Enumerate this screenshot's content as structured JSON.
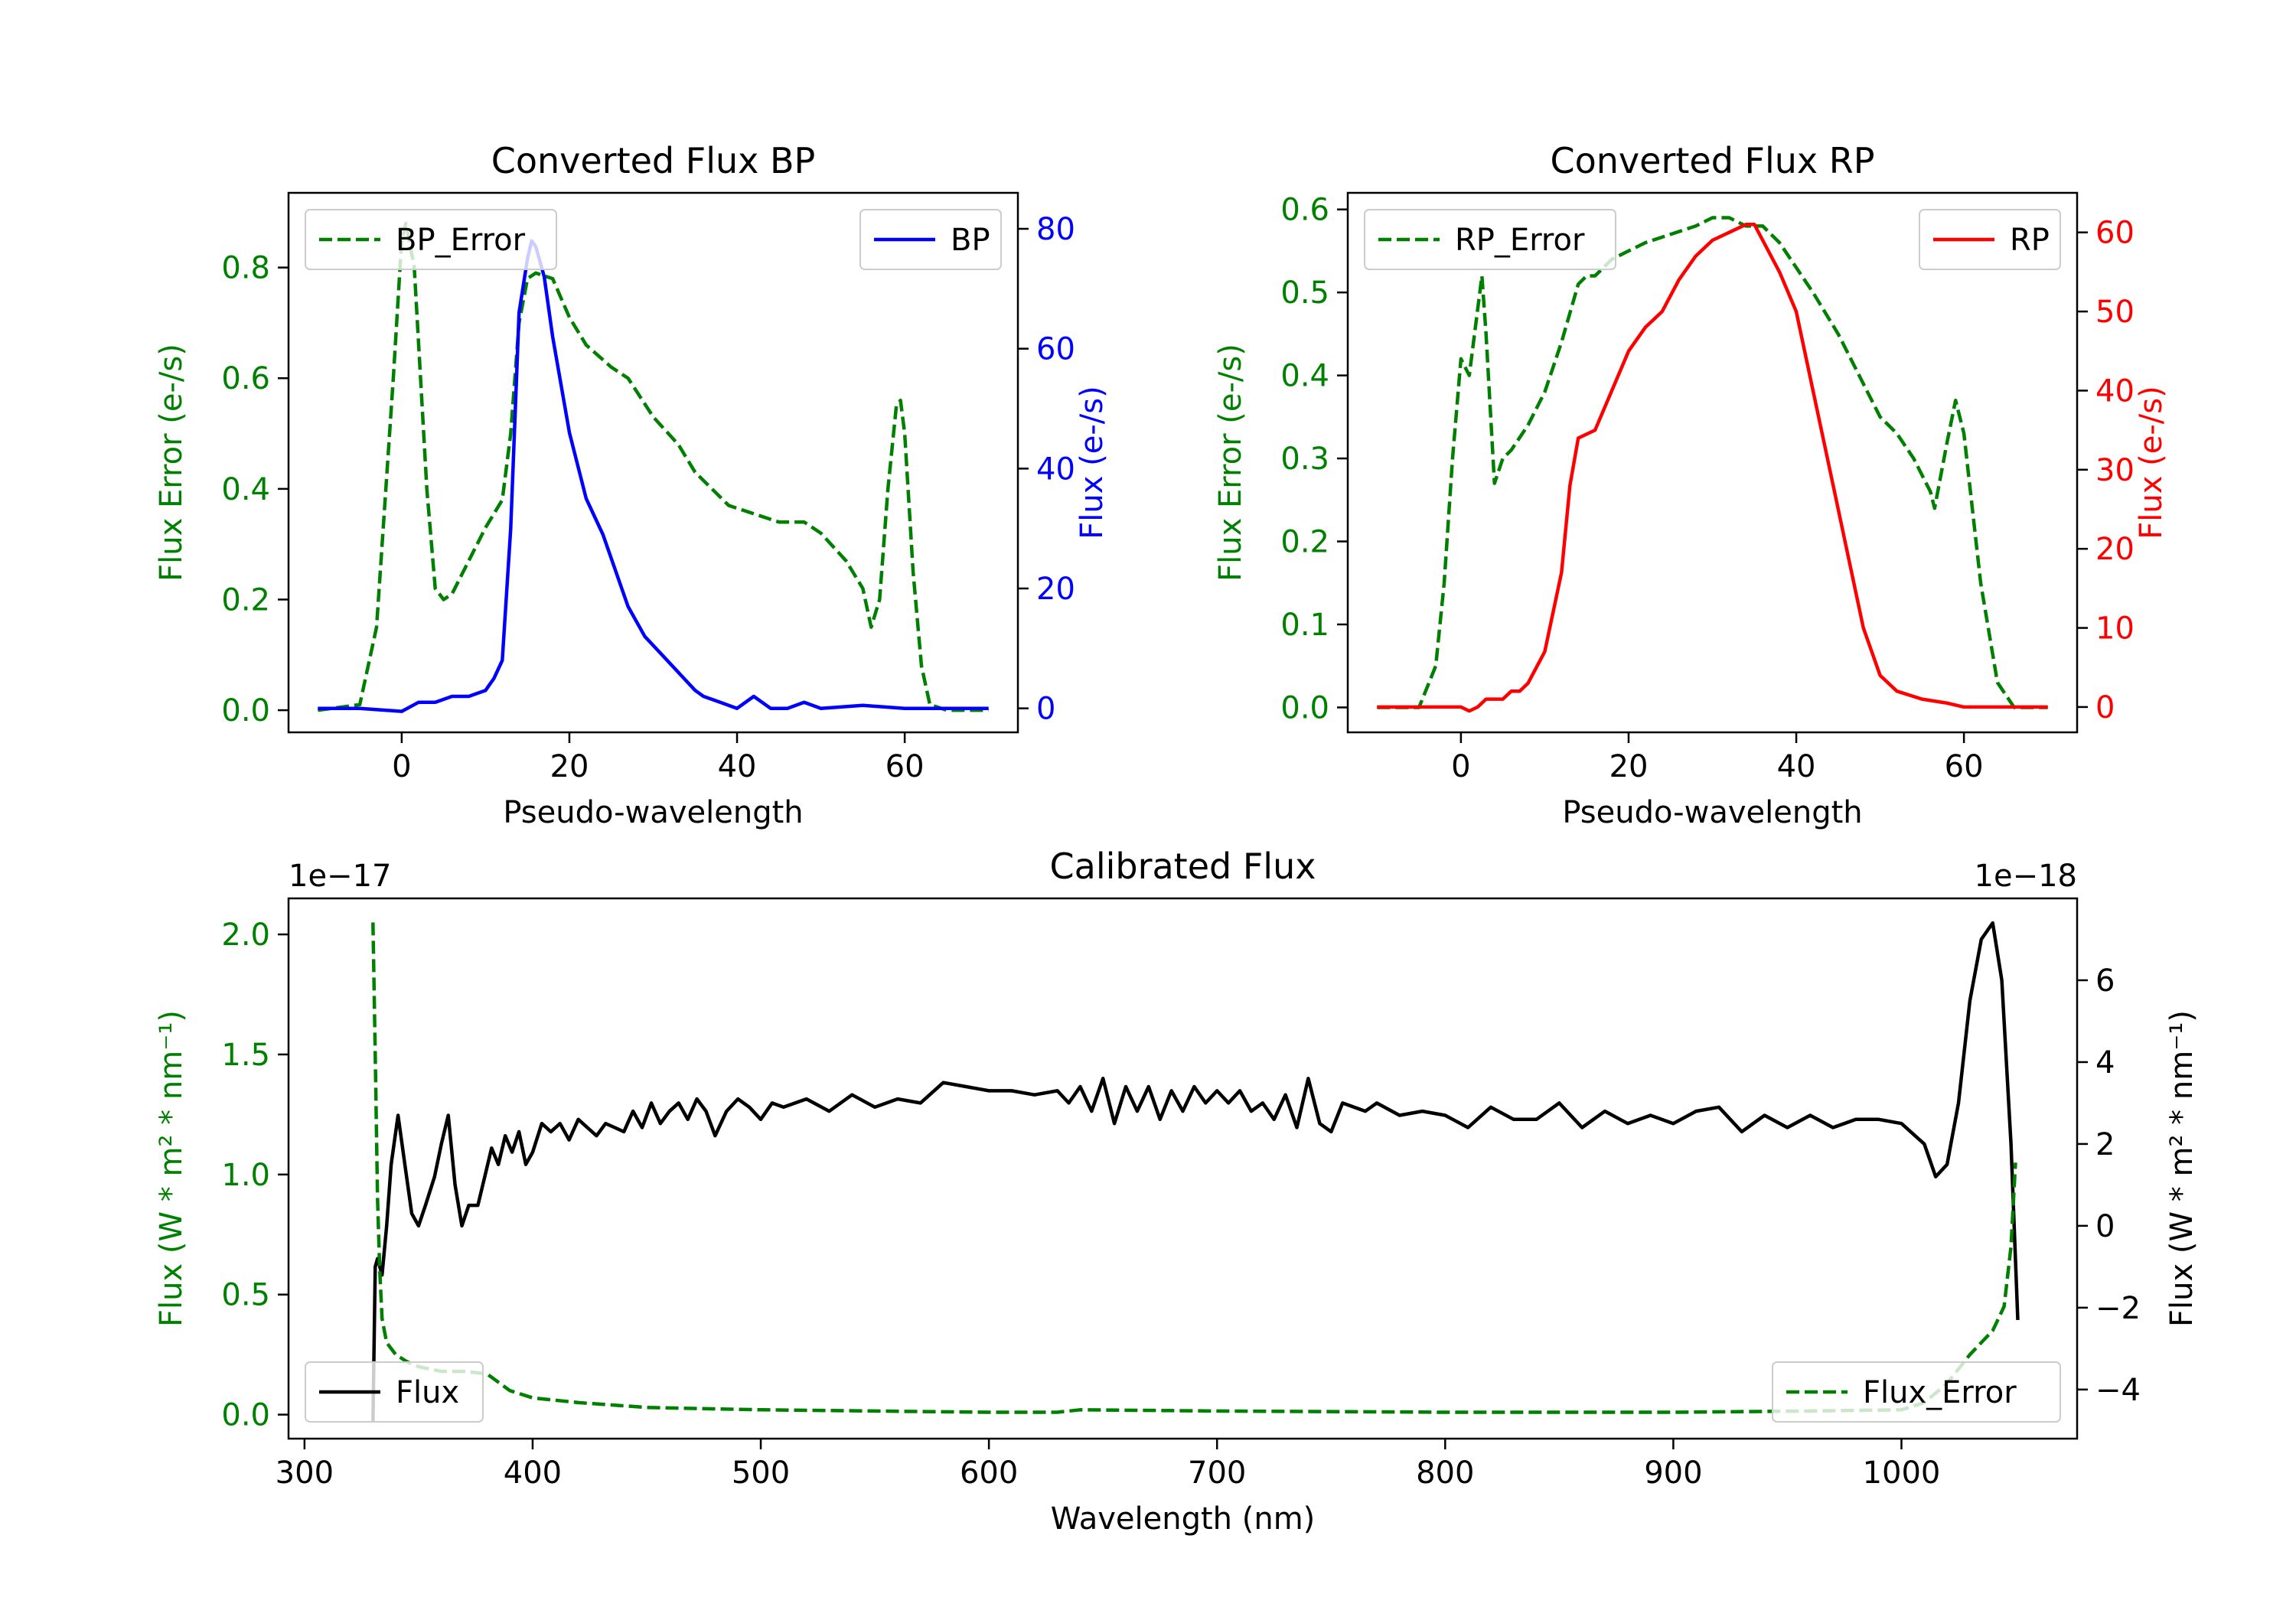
{
  "colors": {
    "green": "#008000",
    "blue": "#0000ff",
    "red": "#ff0000",
    "black": "#000000"
  },
  "chart_data": [
    {
      "type": "line",
      "title": "Converted Flux BP",
      "xlabel": "Pseudo-wavelength",
      "xlim": [
        -13.5,
        73.5
      ],
      "xticks": [
        0,
        20,
        40,
        60
      ],
      "xtick_labels": [
        "0",
        "20",
        "40",
        "60"
      ],
      "left_axis": {
        "label": "Flux Error (e-/s)",
        "color": "#008000",
        "ylim": [
          -0.04,
          0.935
        ],
        "ticks": [
          0.0,
          0.2,
          0.4,
          0.6,
          0.8
        ],
        "tick_labels": [
          "0.0",
          "0.2",
          "0.4",
          "0.6",
          "0.8"
        ]
      },
      "right_axis": {
        "label": "Flux (e-/s)",
        "color": "#0000ff",
        "ylim": [
          -4,
          86
        ],
        "ticks": [
          0,
          20,
          40,
          60,
          80
        ],
        "tick_labels": [
          "0",
          "20",
          "40",
          "60",
          "80"
        ]
      },
      "series": [
        {
          "name": "BP_Error",
          "axis": "left",
          "style": "dashed",
          "color": "#008000",
          "x": [
            -10,
            -5,
            -3,
            -1,
            0,
            0.5,
            1.5,
            3,
            4,
            5,
            6,
            8,
            10,
            12,
            13,
            14,
            15,
            16,
            18,
            20,
            22,
            25,
            27,
            30,
            33,
            35,
            37,
            39,
            41,
            43,
            45,
            48,
            50,
            53,
            55,
            56,
            57,
            58,
            59,
            59.5,
            60,
            61,
            62,
            63,
            65,
            70
          ],
          "y": [
            0.0,
            0.01,
            0.15,
            0.6,
            0.85,
            0.88,
            0.8,
            0.4,
            0.22,
            0.2,
            0.21,
            0.27,
            0.33,
            0.38,
            0.5,
            0.7,
            0.78,
            0.79,
            0.78,
            0.71,
            0.66,
            0.62,
            0.6,
            0.53,
            0.48,
            0.43,
            0.4,
            0.37,
            0.36,
            0.35,
            0.34,
            0.34,
            0.32,
            0.27,
            0.22,
            0.15,
            0.2,
            0.4,
            0.55,
            0.56,
            0.5,
            0.25,
            0.08,
            0.01,
            0.0,
            0.0
          ]
        },
        {
          "name": "BP",
          "axis": "right",
          "style": "solid",
          "color": "#0000ff",
          "x": [
            -10,
            -5,
            0,
            2,
            4,
            6,
            8,
            10,
            11,
            12,
            13,
            14,
            15,
            15.5,
            16,
            17,
            18,
            20,
            22,
            24,
            25,
            27,
            29,
            31,
            33,
            35,
            36,
            37,
            38,
            40,
            42,
            44,
            46,
            48,
            50,
            55,
            60,
            65,
            70
          ],
          "y": [
            0,
            0,
            -0.5,
            1,
            1,
            2,
            2,
            3,
            5,
            8,
            30,
            66,
            75,
            78,
            77,
            72,
            62,
            46,
            35,
            29,
            25,
            17,
            12,
            9,
            6,
            3,
            2,
            1.5,
            1,
            0,
            2,
            0,
            0,
            1,
            0,
            0.5,
            0,
            0,
            0
          ]
        }
      ],
      "legends": [
        {
          "label": "BP_Error",
          "position": "upper left"
        },
        {
          "label": "BP",
          "position": "upper right"
        }
      ]
    },
    {
      "type": "line",
      "title": "Converted Flux RP",
      "xlabel": "Pseudo-wavelength",
      "xlim": [
        -13.5,
        73.5
      ],
      "xticks": [
        0,
        20,
        40,
        60
      ],
      "xtick_labels": [
        "0",
        "20",
        "40",
        "60"
      ],
      "left_axis": {
        "label": "Flux Error (e-/s)",
        "color": "#008000",
        "ylim": [
          -0.03,
          0.62
        ],
        "ticks": [
          0.0,
          0.1,
          0.2,
          0.3,
          0.4,
          0.5,
          0.6
        ],
        "tick_labels": [
          "0.0",
          "0.1",
          "0.2",
          "0.3",
          "0.4",
          "0.5",
          "0.6"
        ]
      },
      "right_axis": {
        "label": "Flux (e-/s)",
        "color": "#ff0000",
        "ylim": [
          -3.2,
          65
        ],
        "ticks": [
          0,
          10,
          20,
          30,
          40,
          50,
          60
        ],
        "tick_labels": [
          "0",
          "10",
          "20",
          "30",
          "40",
          "50",
          "60"
        ]
      },
      "series": [
        {
          "name": "RP_Error",
          "axis": "left",
          "style": "dashed",
          "color": "#008000",
          "x": [
            -10,
            -5,
            -3,
            -2,
            -1,
            0,
            1,
            2,
            2.5,
            3,
            4,
            5,
            6,
            8,
            10,
            12,
            14,
            15,
            16,
            18,
            20,
            22,
            25,
            28,
            30,
            32,
            34,
            36,
            38,
            40,
            42,
            45,
            48,
            50,
            52,
            54,
            56,
            56.5,
            58,
            59,
            60,
            62,
            64,
            66,
            70
          ],
          "y": [
            0.0,
            0.0,
            0.05,
            0.15,
            0.3,
            0.42,
            0.4,
            0.48,
            0.52,
            0.45,
            0.27,
            0.3,
            0.31,
            0.34,
            0.38,
            0.44,
            0.51,
            0.52,
            0.52,
            0.54,
            0.55,
            0.56,
            0.57,
            0.58,
            0.59,
            0.59,
            0.58,
            0.58,
            0.56,
            0.53,
            0.5,
            0.45,
            0.39,
            0.35,
            0.33,
            0.3,
            0.26,
            0.24,
            0.32,
            0.37,
            0.33,
            0.15,
            0.03,
            0.0,
            0.0
          ]
        },
        {
          "name": "RP",
          "axis": "right",
          "style": "solid",
          "color": "#ff0000",
          "x": [
            -10,
            -5,
            0,
            1,
            2,
            3,
            4,
            5,
            6,
            7,
            8,
            10,
            12,
            13,
            14,
            16,
            18,
            20,
            22,
            24,
            26,
            28,
            30,
            32,
            34,
            35,
            36,
            38,
            40,
            42,
            44,
            46,
            48,
            50,
            52,
            55,
            58,
            60,
            65,
            70
          ],
          "y": [
            0,
            0,
            0,
            -0.5,
            0,
            1,
            1,
            1,
            2,
            2,
            3,
            7,
            17,
            28,
            34,
            35,
            40,
            45,
            48,
            50,
            54,
            57,
            59,
            60,
            61,
            61,
            59,
            55,
            50,
            40,
            30,
            20,
            10,
            4,
            2,
            1,
            0.5,
            0,
            0,
            0
          ]
        }
      ],
      "legends": [
        {
          "label": "RP_Error",
          "position": "upper left"
        },
        {
          "label": "RP",
          "position": "upper right"
        }
      ]
    },
    {
      "type": "line",
      "title": "Calibrated Flux",
      "xlabel": "Wavelength (nm)",
      "xlim": [
        293,
        1077
      ],
      "xticks": [
        300,
        400,
        500,
        600,
        700,
        800,
        900,
        1000
      ],
      "xtick_labels": [
        "300",
        "400",
        "500",
        "600",
        "700",
        "800",
        "900",
        "1000"
      ],
      "left_axis": {
        "label": "Flux (W * m² * nm⁻¹)",
        "color": "#008000",
        "offset_text": "1e−17",
        "ylim": [
          -0.1,
          2.15
        ],
        "ticks": [
          0.0,
          0.5,
          1.0,
          1.5,
          2.0
        ],
        "tick_labels": [
          "0.0",
          "0.5",
          "1.0",
          "1.5",
          "2.0"
        ]
      },
      "right_axis": {
        "label": "Flux (W * m² * nm⁻¹)",
        "color": "#000000",
        "offset_text": "1e−18",
        "ylim": [
          -5.2,
          8.0
        ],
        "ticks": [
          -4,
          -2,
          0,
          2,
          4,
          6
        ],
        "tick_labels": [
          "−4",
          "−2",
          "0",
          "2",
          "4",
          "6"
        ]
      },
      "series": [
        {
          "name": "Flux",
          "axis": "right",
          "style": "solid",
          "color": "#000000",
          "x": [
            330,
            331,
            332,
            334,
            336,
            338,
            341,
            344,
            347,
            350,
            353,
            357,
            360,
            363,
            366,
            369,
            372,
            376,
            379,
            382,
            385,
            388,
            391,
            394,
            397,
            400,
            404,
            408,
            412,
            416,
            420,
            424,
            428,
            432,
            436,
            440,
            444,
            448,
            452,
            456,
            460,
            464,
            468,
            472,
            476,
            480,
            485,
            490,
            495,
            500,
            505,
            510,
            520,
            530,
            540,
            550,
            560,
            570,
            580,
            590,
            600,
            610,
            620,
            630,
            635,
            640,
            645,
            650,
            655,
            660,
            665,
            670,
            675,
            680,
            685,
            690,
            695,
            700,
            705,
            710,
            715,
            720,
            725,
            730,
            735,
            740,
            745,
            750,
            755,
            760,
            765,
            770,
            780,
            790,
            800,
            810,
            820,
            830,
            840,
            850,
            860,
            870,
            880,
            890,
            900,
            910,
            920,
            930,
            940,
            950,
            960,
            970,
            980,
            990,
            1000,
            1010,
            1015,
            1020,
            1025,
            1030,
            1035,
            1040,
            1044,
            1048,
            1051
          ],
          "y": [
            -4.8,
            -1.0,
            -0.8,
            -1.2,
            0,
            1.5,
            2.7,
            1.5,
            0.3,
            0,
            0.5,
            1.2,
            2.0,
            2.7,
            1.0,
            0,
            0.5,
            0.5,
            1.2,
            1.9,
            1.5,
            2.2,
            1.8,
            2.3,
            1.5,
            1.8,
            2.5,
            2.3,
            2.5,
            2.1,
            2.6,
            2.4,
            2.2,
            2.5,
            2.4,
            2.3,
            2.8,
            2.4,
            3.0,
            2.5,
            2.8,
            3.0,
            2.6,
            3.1,
            2.8,
            2.2,
            2.8,
            3.1,
            2.9,
            2.6,
            3.0,
            2.9,
            3.1,
            2.8,
            3.2,
            2.9,
            3.1,
            3.0,
            3.5,
            3.4,
            3.3,
            3.3,
            3.2,
            3.3,
            3.0,
            3.4,
            2.8,
            3.6,
            2.5,
            3.4,
            2.8,
            3.4,
            2.6,
            3.3,
            2.8,
            3.4,
            3.0,
            3.3,
            3.0,
            3.3,
            2.8,
            3.0,
            2.6,
            3.2,
            2.4,
            3.6,
            2.5,
            2.3,
            3.0,
            2.9,
            2.8,
            3.0,
            2.7,
            2.8,
            2.7,
            2.4,
            2.9,
            2.6,
            2.6,
            3.0,
            2.4,
            2.8,
            2.5,
            2.7,
            2.5,
            2.8,
            2.9,
            2.3,
            2.7,
            2.4,
            2.7,
            2.4,
            2.6,
            2.6,
            2.5,
            2.0,
            1.2,
            1.5,
            3.0,
            5.5,
            7.0,
            7.4,
            6.0,
            2.0,
            -2.3
          ]
        },
        {
          "name": "Flux_Error",
          "axis": "left",
          "style": "dashed",
          "color": "#008000",
          "x": [
            330,
            331,
            332,
            333,
            334,
            336,
            340,
            345,
            350,
            360,
            370,
            380,
            390,
            400,
            420,
            450,
            500,
            550,
            600,
            630,
            640,
            700,
            800,
            900,
            960,
            1000,
            1010,
            1020,
            1030,
            1035,
            1040,
            1045,
            1048,
            1050
          ],
          "y": [
            2.05,
            1.5,
            0.9,
            0.6,
            0.4,
            0.3,
            0.25,
            0.22,
            0.2,
            0.18,
            0.18,
            0.17,
            0.1,
            0.07,
            0.05,
            0.03,
            0.02,
            0.015,
            0.01,
            0.01,
            0.02,
            0.015,
            0.01,
            0.01,
            0.015,
            0.02,
            0.05,
            0.13,
            0.25,
            0.3,
            0.35,
            0.45,
            0.7,
            1.05
          ]
        }
      ],
      "legends": [
        {
          "label": "Flux",
          "position": "lower left"
        },
        {
          "label": "Flux_Error",
          "position": "lower right"
        }
      ]
    }
  ]
}
